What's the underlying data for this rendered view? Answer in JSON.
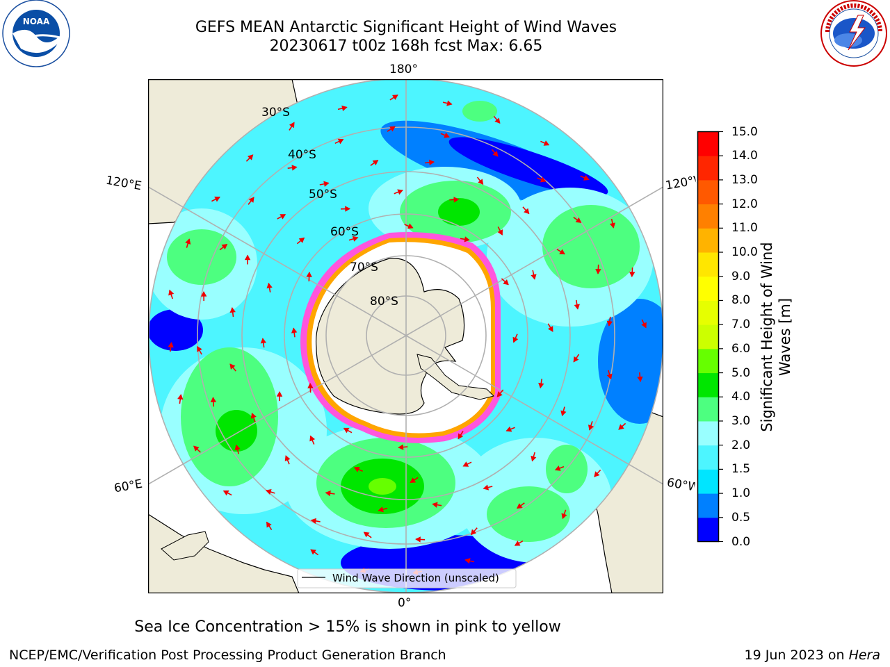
{
  "header": {
    "title_line1": "GEFS MEAN Antarctic Significant Height of Wind Waves",
    "title_line2": "20230617 t00z 168h fcst   Max: 6.65",
    "left_logo_text": "NOAA",
    "left_logo_ring_text": "NATIONAL OCEANIC AND ATMOSPHERIC ADMINISTRATION",
    "left_logo_ring_text_bottom": "U.S. DEPARTMENT OF COMMERCE",
    "right_logo_ring_text": "NATIONAL WEATHER SERVICE"
  },
  "map": {
    "projection": "south-polar-stereographic",
    "longitude_labels": {
      "top": "180°",
      "bottom": "0°",
      "left_upper": "120°E",
      "left_lower": "60°E",
      "right_upper": "120°W",
      "right_lower": "60°W"
    },
    "latitude_labels": [
      "30°S",
      "40°S",
      "50°S",
      "60°S",
      "70°S",
      "80°S"
    ],
    "legend_label": "Wind Wave Direction (unscaled)",
    "land_color": "#eeebd9",
    "ice_color": "#ffffff",
    "arrow_color": "#ee0000"
  },
  "colorbar": {
    "label_line1": "Significant Height of Wind",
    "label_line2": "Waves [m]",
    "ticks": [
      "0.0",
      "0.5",
      "1.0",
      "1.5",
      "2.0",
      "3.0",
      "4.0",
      "5.0",
      "6.0",
      "7.0",
      "8.0",
      "9.0",
      "10.0",
      "11.0",
      "12.0",
      "13.0",
      "14.0",
      "15.0"
    ],
    "colors": [
      "#0000ff",
      "#0080ff",
      "#00e5ff",
      "#4df5ff",
      "#99ffff",
      "#4dff80",
      "#00e600",
      "#66ff00",
      "#ccff00",
      "#e6ff00",
      "#ffff00",
      "#ffe600",
      "#ffb300",
      "#ff8000",
      "#ff5900",
      "#ff2600",
      "#ff0000"
    ]
  },
  "caption": "Sea Ice Concentration > 15% is shown in pink to yellow",
  "footer": {
    "left": "NCEP/EMC/Verification Post Processing Product Generation Branch",
    "right_date": "19 Jun 2023 on ",
    "right_machine": "Hera"
  }
}
